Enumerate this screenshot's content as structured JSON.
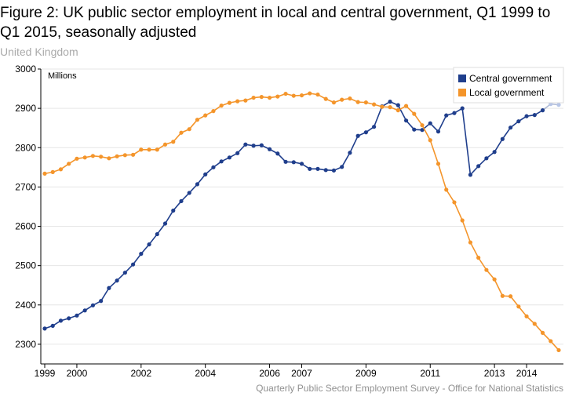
{
  "title": "Figure 2: UK public sector employment in local and central government, Q1 1999 to Q1 2015, seasonally adjusted",
  "subtitle": "United Kingdom",
  "source": "Quarterly Public Sector Employment Survey - Office for National Statistics",
  "chart_data": {
    "type": "line",
    "title": "Figure 2: UK public sector employment in local and central government, Q1 1999 to Q1 2015, seasonally adjusted",
    "subtitle": "United Kingdom",
    "ylabel": "Millions",
    "xlabel": "",
    "ylim": [
      2250,
      3000
    ],
    "xlim": [
      1999,
      2015
    ],
    "yticks": [
      2300,
      2400,
      2500,
      2600,
      2700,
      2800,
      2900,
      3000
    ],
    "xticks": [
      "1999",
      "2000",
      "2002",
      "2004",
      "2006",
      "2007",
      "2009",
      "2011",
      "2013",
      "2014"
    ],
    "grid": true,
    "legend": "top-right",
    "x": [
      "Q1 1999",
      "Q2 1999",
      "Q3 1999",
      "Q4 1999",
      "Q1 2000",
      "Q2 2000",
      "Q3 2000",
      "Q4 2000",
      "Q1 2001",
      "Q2 2001",
      "Q3 2001",
      "Q4 2001",
      "Q1 2002",
      "Q2 2002",
      "Q3 2002",
      "Q4 2002",
      "Q1 2003",
      "Q2 2003",
      "Q3 2003",
      "Q4 2003",
      "Q1 2004",
      "Q2 2004",
      "Q3 2004",
      "Q4 2004",
      "Q1 2005",
      "Q2 2005",
      "Q3 2005",
      "Q4 2005",
      "Q1 2006",
      "Q2 2006",
      "Q3 2006",
      "Q4 2006",
      "Q1 2007",
      "Q2 2007",
      "Q3 2007",
      "Q4 2007",
      "Q1 2008",
      "Q2 2008",
      "Q3 2008",
      "Q4 2008",
      "Q1 2009",
      "Q2 2009",
      "Q3 2009",
      "Q4 2009",
      "Q1 2010",
      "Q2 2010",
      "Q3 2010",
      "Q4 2010",
      "Q1 2011",
      "Q2 2011",
      "Q3 2011",
      "Q4 2011",
      "Q1 2012",
      "Q2 2012",
      "Q3 2012",
      "Q4 2012",
      "Q1 2013",
      "Q2 2013",
      "Q3 2013",
      "Q4 2013",
      "Q1 2014",
      "Q2 2014",
      "Q3 2014",
      "Q4 2014",
      "Q1 2015"
    ],
    "series": [
      {
        "name": "Central government",
        "color": "#1f3e8c",
        "values": [
          2340,
          2347,
          2360,
          2366,
          2373,
          2386,
          2399,
          2410,
          2443,
          2462,
          2482,
          2503,
          2530,
          2554,
          2580,
          2607,
          2640,
          2664,
          2685,
          2707,
          2732,
          2750,
          2765,
          2775,
          2786,
          2808,
          2805,
          2806,
          2796,
          2785,
          2764,
          2763,
          2759,
          2746,
          2746,
          2743,
          2742,
          2751,
          2787,
          2830,
          2839,
          2853,
          2905,
          2917,
          2908,
          2869,
          2846,
          2845,
          2862,
          2841,
          2882,
          2888,
          2900,
          2731,
          2753,
          2773,
          2789,
          2822,
          2851,
          2867,
          2880,
          2883,
          2895,
          2911,
          2909
        ]
      },
      {
        "name": "Local government",
        "color": "#f4952b",
        "values": [
          2734,
          2738,
          2745,
          2759,
          2772,
          2775,
          2779,
          2777,
          2773,
          2778,
          2781,
          2782,
          2795,
          2795,
          2795,
          2808,
          2815,
          2838,
          2847,
          2871,
          2882,
          2893,
          2907,
          2914,
          2918,
          2920,
          2927,
          2929,
          2927,
          2930,
          2937,
          2932,
          2933,
          2938,
          2935,
          2924,
          2915,
          2922,
          2925,
          2916,
          2915,
          2910,
          2904,
          2903,
          2895,
          2906,
          2886,
          2857,
          2819,
          2759,
          2693,
          2661,
          2615,
          2559,
          2520,
          2489,
          2465,
          2423,
          2422,
          2396,
          2371,
          2352,
          2329,
          2308,
          2285
        ]
      }
    ],
    "faded_points": [
      {
        "series": "Central government",
        "x": "Q4 2014"
      },
      {
        "series": "Central government",
        "x": "Q1 2015"
      }
    ]
  }
}
